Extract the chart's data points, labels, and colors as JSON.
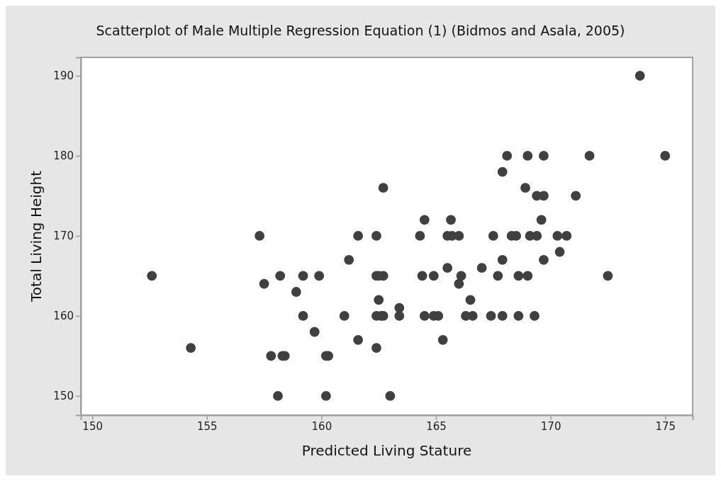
{
  "chart_data": {
    "type": "scatter",
    "title": "Scatterplot of Male Multiple Regression Equation (1) (Bidmos and Asala, 2005)",
    "xlabel": "Predicted Living Stature",
    "ylabel": "Total Living Height",
    "xlim": [
      149.5,
      176.2
    ],
    "ylim": [
      147.6,
      192.3
    ],
    "xticks": [
      150,
      155,
      160,
      165,
      170,
      175
    ],
    "yticks": [
      150,
      160,
      170,
      180,
      190
    ],
    "grid": false,
    "marker": "circle",
    "series": [
      {
        "color": "#404040",
        "x": [
          152.6,
          154.3,
          157.3,
          157.5,
          157.8,
          158.2,
          158.1,
          158.3,
          158.4,
          158.9,
          159.2,
          159.2,
          159.7,
          159.9,
          160.2,
          160.2,
          160.3,
          161.0,
          161.2,
          161.6,
          161.6,
          162.4,
          162.4,
          162.4,
          162.5,
          162.7,
          162.4,
          162.6,
          162.7,
          162.5,
          162.7,
          163.0,
          163.4,
          163.4,
          164.5,
          164.3,
          165.65,
          165.5,
          165.7,
          166.0,
          167.5,
          168.3,
          168.5,
          169.1,
          169.4,
          170.3,
          170.7,
          169.6,
          170.4,
          167.9,
          169.7,
          167.9,
          168.1,
          169.0,
          169.7,
          171.7,
          175.0,
          173.9,
          168.9,
          169.4,
          169.7,
          171.1,
          164.4,
          164.9,
          165.5,
          166.1,
          166.0,
          167.0,
          167.7,
          168.6,
          169.0,
          172.5,
          166.5,
          164.5,
          164.9,
          165.1,
          166.3,
          166.6,
          167.4,
          167.9,
          168.6,
          169.3,
          165.3
        ],
        "values": [
          165,
          156,
          170,
          164,
          155,
          165,
          150,
          155,
          155,
          163,
          160,
          165,
          158,
          165,
          150,
          155,
          155,
          160,
          167,
          157,
          170,
          170,
          156,
          165,
          165,
          165,
          160,
          160,
          160,
          162,
          176,
          150,
          161,
          160,
          172,
          170,
          172,
          170,
          170,
          170,
          170,
          170,
          170,
          170,
          170,
          170,
          170,
          172,
          168,
          167,
          167,
          178,
          180,
          180,
          180,
          180,
          180,
          190,
          176,
          175,
          175,
          175,
          165,
          165,
          166,
          165,
          164,
          166,
          165,
          165,
          165,
          165,
          162,
          160,
          160,
          160,
          160,
          160,
          160,
          160,
          160,
          160,
          157
        ]
      }
    ]
  }
}
